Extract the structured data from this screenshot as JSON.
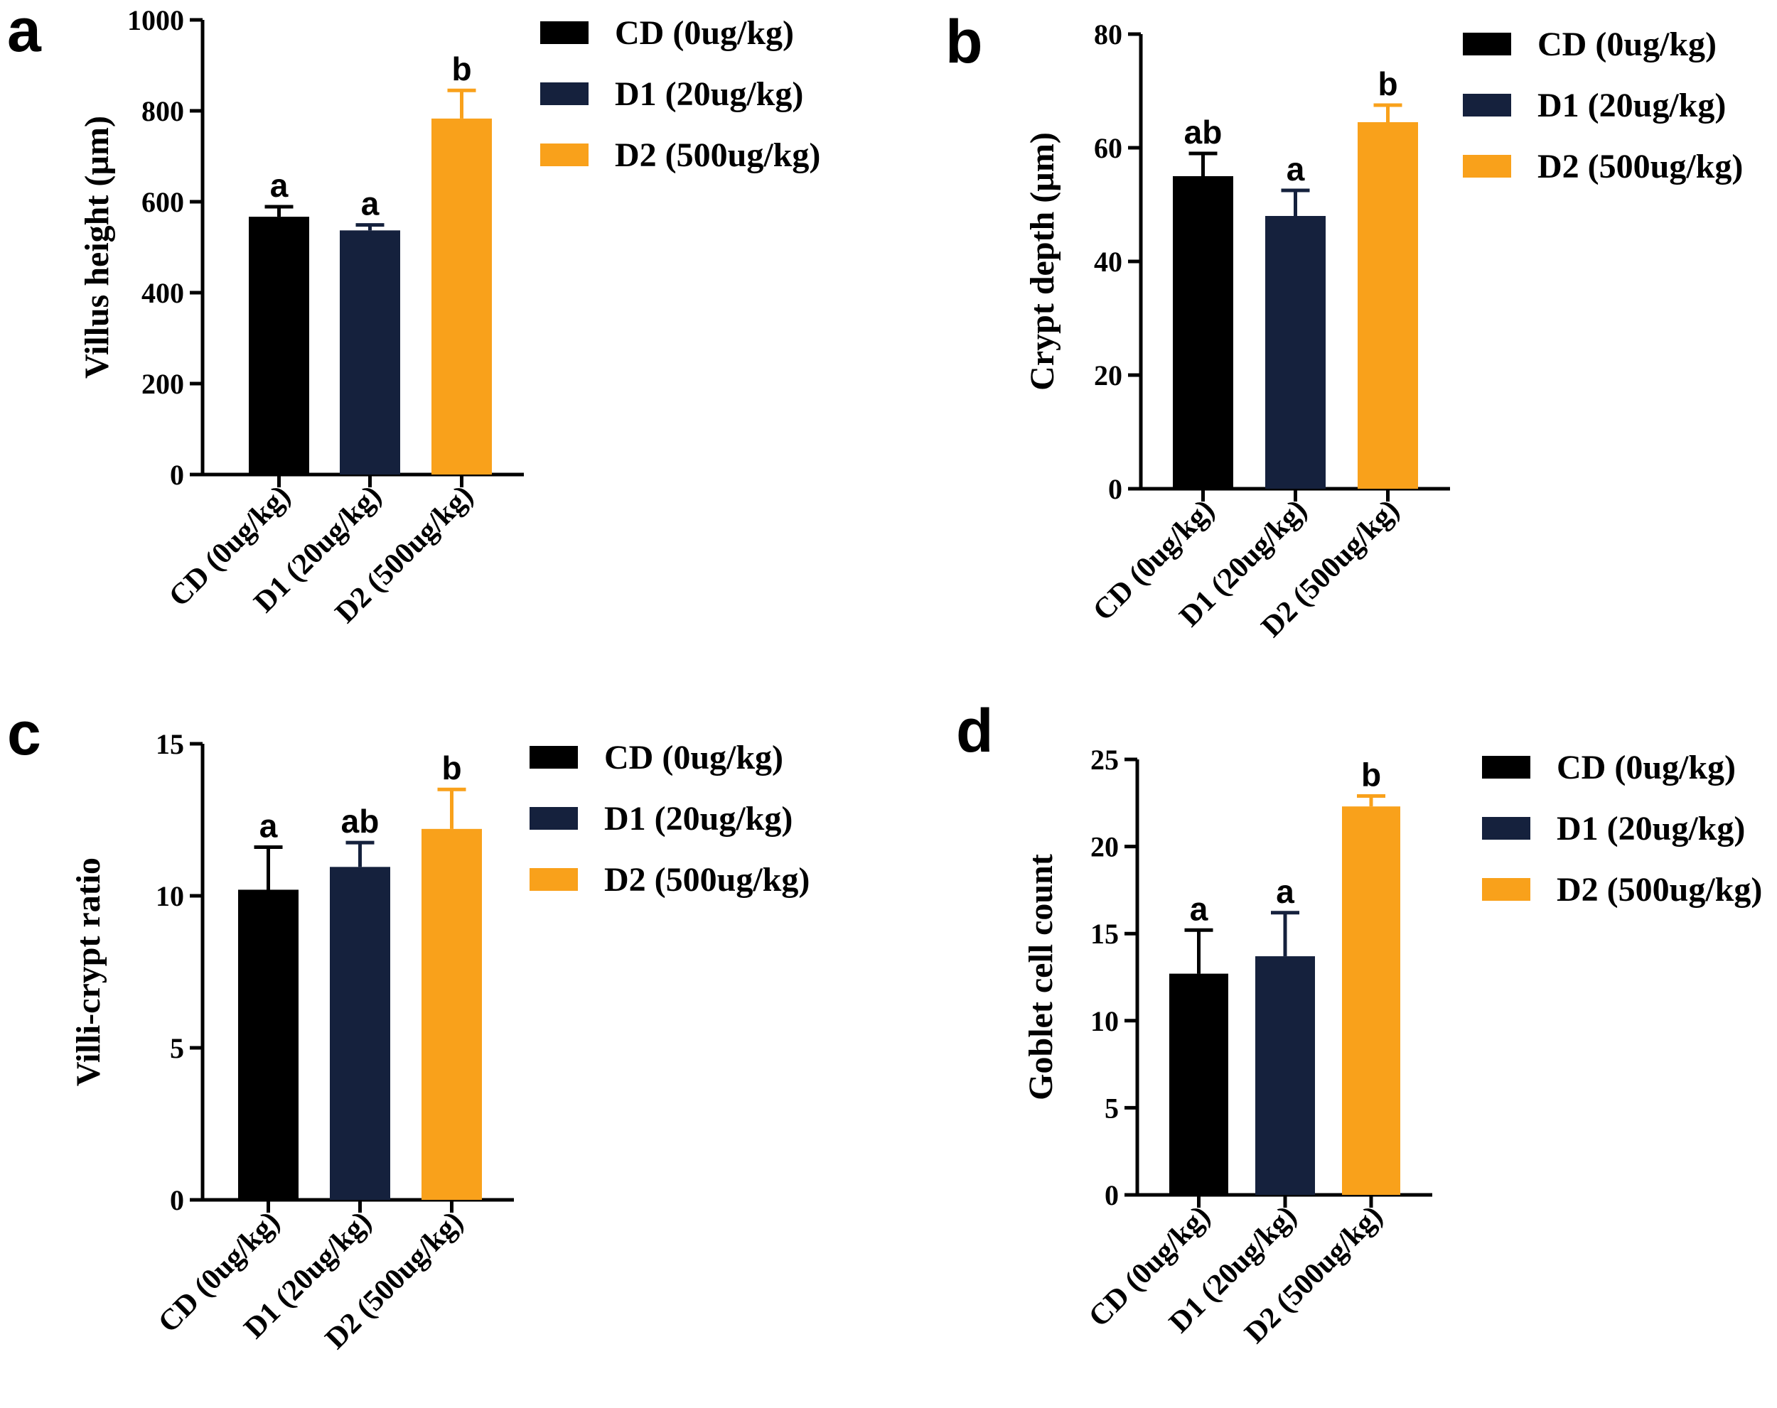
{
  "colors": {
    "CD (0ug/kg)": "#000000",
    "D1 (20ug/kg)": "#15213d",
    "D2 (500ug/kg)": "#f9a11b"
  },
  "chart_data": [
    {
      "panel": "a",
      "type": "bar",
      "categories": [
        "CD (0ug/kg)",
        "D1 (20ug/kg)",
        "D2 (500ug/kg)"
      ],
      "values": [
        567,
        537,
        783
      ],
      "errors": [
        22,
        12,
        62
      ],
      "significance": [
        "a",
        "a",
        "b"
      ],
      "ylabel": "Villus height (µm)",
      "ylim": [
        0,
        1000
      ],
      "yticks": [
        0,
        200,
        400,
        600,
        800,
        1000
      ],
      "legend": [
        "CD (0ug/kg)",
        "D1 (20ug/kg)",
        "D2 (500ug/kg)"
      ]
    },
    {
      "panel": "b",
      "type": "bar",
      "categories": [
        "CD (0ug/kg)",
        "D1 (20ug/kg)",
        "D2 (500ug/kg)"
      ],
      "values": [
        55,
        48,
        64.5
      ],
      "errors": [
        4,
        4.5,
        3
      ],
      "significance": [
        "ab",
        "a",
        "b"
      ],
      "ylabel": "Crypt depth (µm)",
      "ylim": [
        0,
        80
      ],
      "yticks": [
        0,
        20,
        40,
        60,
        80
      ],
      "legend": [
        "CD (0ug/kg)",
        "D1 (20ug/kg)",
        "D2 (500ug/kg)"
      ]
    },
    {
      "panel": "c",
      "type": "bar",
      "categories": [
        "CD (0ug/kg)",
        "D1 (20ug/kg)",
        "D2 (500ug/kg)"
      ],
      "values": [
        10.2,
        10.95,
        12.2
      ],
      "errors": [
        1.4,
        0.8,
        1.3
      ],
      "significance": [
        "a",
        "ab",
        "b"
      ],
      "ylabel": "Villi-crypt ratio",
      "ylim": [
        0,
        15
      ],
      "yticks": [
        0,
        5,
        10,
        15
      ],
      "legend": [
        "CD (0ug/kg)",
        "D1 (20ug/kg)",
        "D2 (500ug/kg)"
      ]
    },
    {
      "panel": "d",
      "type": "bar",
      "categories": [
        "CD (0ug/kg)",
        "D1 (20ug/kg)",
        "D2 (500ug/kg)"
      ],
      "values": [
        12.7,
        13.7,
        22.3
      ],
      "errors": [
        2.5,
        2.5,
        0.6
      ],
      "significance": [
        "a",
        "a",
        "b"
      ],
      "ylabel": "Goblet cell count",
      "ylim": [
        0,
        25
      ],
      "yticks": [
        0,
        5,
        10,
        15,
        20,
        25
      ],
      "legend": [
        "CD (0ug/kg)",
        "D1 (20ug/kg)",
        "D2 (500ug/kg)"
      ]
    }
  ]
}
